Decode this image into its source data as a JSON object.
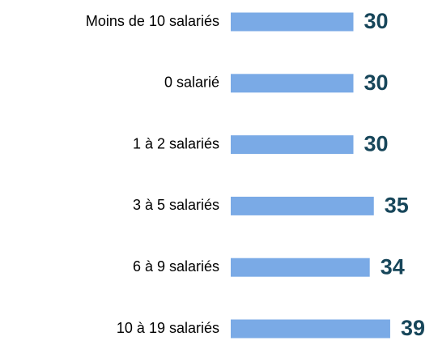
{
  "chart_data": {
    "type": "bar",
    "orientation": "horizontal",
    "categories": [
      "Moins de 10 salariés",
      "0 salarié",
      "1 à 2 salariés",
      "3 à 5 salariés",
      "6 à 9 salariés",
      "10 à 19 salariés"
    ],
    "values": [
      30,
      30,
      30,
      35,
      34,
      39
    ],
    "color": "#7aaae6"
  }
}
